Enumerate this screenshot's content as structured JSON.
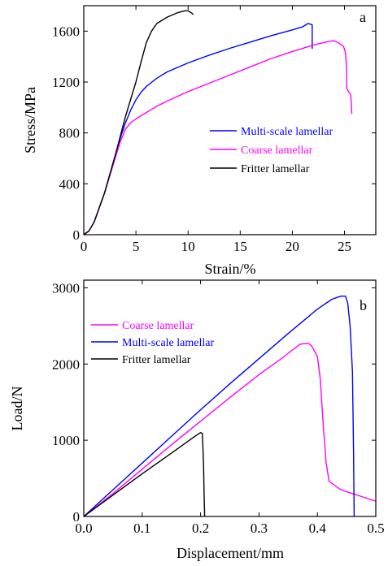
{
  "chart_data": [
    {
      "type": "line",
      "panel_label": "a",
      "xlabel": "Strain/%",
      "ylabel": "Stress/MPa",
      "xlim": [
        0,
        28
      ],
      "ylim": [
        0,
        1800
      ],
      "xticks": [
        0,
        5,
        10,
        15,
        20,
        25
      ],
      "yticks": [
        0,
        400,
        800,
        1200,
        1600
      ],
      "xtick_labels": [
        "0",
        "5",
        "10",
        "15",
        "20",
        "25"
      ],
      "ytick_labels": [
        "0",
        "400",
        "800",
        "1200",
        "1600"
      ],
      "grid": false,
      "legend_position": "right",
      "series": [
        {
          "name": "Multi-scale lamellar",
          "color": "#0000ff",
          "points": [
            [
              0,
              0
            ],
            [
              0.5,
              30
            ],
            [
              1,
              100
            ],
            [
              2,
              330
            ],
            [
              3,
              620
            ],
            [
              3.5,
              760
            ],
            [
              4,
              880
            ],
            [
              4.5,
              980
            ],
            [
              5,
              1060
            ],
            [
              5.5,
              1120
            ],
            [
              6,
              1165
            ],
            [
              7,
              1230
            ],
            [
              8,
              1280
            ],
            [
              10,
              1350
            ],
            [
              12,
              1410
            ],
            [
              14,
              1465
            ],
            [
              16,
              1515
            ],
            [
              18,
              1565
            ],
            [
              20,
              1610
            ],
            [
              21,
              1635
            ],
            [
              21.5,
              1660
            ],
            [
              21.9,
              1650
            ],
            [
              21.9,
              1460
            ]
          ]
        },
        {
          "name": "Coarse lamellar",
          "color": "#ff00ff",
          "points": [
            [
              0,
              0
            ],
            [
              0.5,
              30
            ],
            [
              1,
              100
            ],
            [
              2,
              330
            ],
            [
              3,
              600
            ],
            [
              3.5,
              730
            ],
            [
              4,
              830
            ],
            [
              4.5,
              880
            ],
            [
              5,
              910
            ],
            [
              6,
              960
            ],
            [
              7,
              1010
            ],
            [
              8,
              1050
            ],
            [
              10,
              1125
            ],
            [
              12,
              1190
            ],
            [
              14,
              1255
            ],
            [
              16,
              1320
            ],
            [
              18,
              1385
            ],
            [
              20,
              1440
            ],
            [
              22,
              1490
            ],
            [
              23.5,
              1520
            ],
            [
              24,
              1525
            ],
            [
              24.5,
              1505
            ],
            [
              24.9,
              1480
            ],
            [
              25.1,
              1430
            ],
            [
              25.2,
              1300
            ],
            [
              25.2,
              1150
            ],
            [
              25.6,
              1100
            ],
            [
              25.7,
              950
            ]
          ]
        },
        {
          "name": "Fritter lamellar",
          "color": "#000000",
          "points": [
            [
              0,
              0
            ],
            [
              0.5,
              30
            ],
            [
              1,
              100
            ],
            [
              2,
              330
            ],
            [
              3,
              620
            ],
            [
              4,
              930
            ],
            [
              5,
              1200
            ],
            [
              5.5,
              1360
            ],
            [
              6,
              1510
            ],
            [
              6.5,
              1600
            ],
            [
              7,
              1660
            ],
            [
              8,
              1710
            ],
            [
              9,
              1745
            ],
            [
              9.7,
              1760
            ],
            [
              10,
              1760
            ],
            [
              10.3,
              1745
            ],
            [
              10.5,
              1730
            ]
          ]
        }
      ]
    },
    {
      "type": "line",
      "panel_label": "b",
      "xlabel": "Displacement/mm",
      "ylabel": "Load/N",
      "xlim": [
        0,
        0.5
      ],
      "ylim": [
        0,
        3100
      ],
      "xticks": [
        0.0,
        0.1,
        0.2,
        0.3,
        0.4,
        0.5
      ],
      "yticks": [
        0,
        1000,
        2000,
        3000
      ],
      "xtick_labels": [
        "0.0",
        "0.1",
        "0.2",
        "0.3",
        "0.4",
        "0.5"
      ],
      "ytick_labels": [
        "0",
        "1000",
        "2000",
        "3000"
      ],
      "grid": false,
      "legend_position": "top-left",
      "series": [
        {
          "name": "Coarse lamellar",
          "color": "#ff00ff",
          "points": [
            [
              0,
              0
            ],
            [
              0.05,
              300
            ],
            [
              0.1,
              620
            ],
            [
              0.15,
              940
            ],
            [
              0.2,
              1250
            ],
            [
              0.25,
              1560
            ],
            [
              0.3,
              1860
            ],
            [
              0.34,
              2080
            ],
            [
              0.36,
              2200
            ],
            [
              0.37,
              2260
            ],
            [
              0.38,
              2270
            ],
            [
              0.385,
              2270
            ],
            [
              0.39,
              2240
            ],
            [
              0.4,
              2100
            ],
            [
              0.405,
              1800
            ],
            [
              0.41,
              1200
            ],
            [
              0.415,
              700
            ],
            [
              0.42,
              460
            ],
            [
              0.44,
              350
            ],
            [
              0.46,
              300
            ],
            [
              0.48,
              250
            ],
            [
              0.5,
              200
            ]
          ]
        },
        {
          "name": "Multi-scale lamellar",
          "color": "#0000ff",
          "points": [
            [
              0,
              0
            ],
            [
              0.05,
              350
            ],
            [
              0.1,
              700
            ],
            [
              0.15,
              1050
            ],
            [
              0.2,
              1400
            ],
            [
              0.25,
              1740
            ],
            [
              0.3,
              2070
            ],
            [
              0.35,
              2400
            ],
            [
              0.4,
              2720
            ],
            [
              0.425,
              2850
            ],
            [
              0.44,
              2890
            ],
            [
              0.448,
              2890
            ],
            [
              0.452,
              2800
            ],
            [
              0.456,
              2500
            ],
            [
              0.46,
              1900
            ],
            [
              0.462,
              800
            ],
            [
              0.463,
              0
            ]
          ]
        },
        {
          "name": "Fritter lamellar",
          "color": "#000000",
          "points": [
            [
              0,
              0
            ],
            [
              0.05,
              280
            ],
            [
              0.1,
              560
            ],
            [
              0.15,
              830
            ],
            [
              0.19,
              1050
            ],
            [
              0.2,
              1100
            ],
            [
              0.203,
              1090
            ],
            [
              0.205,
              700
            ],
            [
              0.206,
              300
            ],
            [
              0.207,
              0
            ]
          ]
        }
      ]
    }
  ]
}
